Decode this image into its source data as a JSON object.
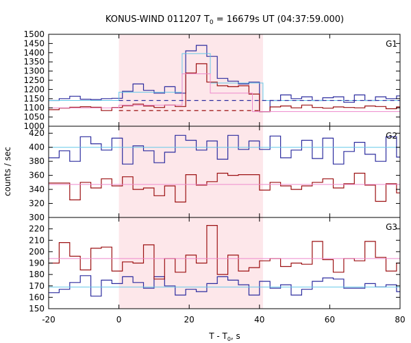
{
  "chart_data": {
    "type": "line",
    "title_main": "KONUS-WIND 011207 T",
    "title_sub": "0",
    "title_rest": " = 16679s UT (04:37:59.000)",
    "ylabel": "counts / sec",
    "xlabel_main": "T - T",
    "xlabel_sub": "0",
    "xlabel_rest": ", s",
    "xlim": [
      -20,
      80
    ],
    "x_ticks": [
      "-20",
      "0",
      "20",
      "40",
      "60",
      "80"
    ],
    "shaded_interval": [
      0,
      41
    ],
    "colors": {
      "blue": "#2b2b9e",
      "red": "#9b0f10",
      "cyan": "#64c8e8",
      "pink": "#ee88cc",
      "shade": "#fde7ea"
    },
    "panels": [
      {
        "name": "G1",
        "ylim": [
          1000,
          1500
        ],
        "y_ticks": [
          1000,
          1050,
          1100,
          1150,
          1200,
          1250,
          1300,
          1350,
          1400,
          1450,
          1500
        ],
        "series": [
          {
            "color": "blue",
            "x": [
              -20,
              -17,
              -14,
              -11,
              -8,
              -5,
              -2,
              1,
              4,
              7,
              10,
              13,
              16,
              19,
              22,
              25,
              28,
              31,
              34,
              37,
              40,
              43,
              46,
              49,
              52,
              55,
              58,
              61,
              64,
              67,
              70,
              73,
              76,
              79,
              80
            ],
            "y": [
              1140,
              1150,
              1163,
              1147,
              1145,
              1150,
              1152,
              1190,
              1230,
              1195,
              1180,
              1215,
              1180,
              1410,
              1440,
              1380,
              1260,
              1245,
              1230,
              1240,
              1080,
              1140,
              1170,
              1150,
              1160,
              1140,
              1155,
              1160,
              1130,
              1170,
              1140,
              1160,
              1150,
              1165,
              1165
            ]
          },
          {
            "color": "red",
            "x": [
              -20,
              -17,
              -14,
              -11,
              -8,
              -5,
              -2,
              1,
              4,
              7,
              10,
              13,
              16,
              19,
              22,
              25,
              28,
              31,
              34,
              37,
              40,
              43,
              46,
              49,
              52,
              55,
              58,
              61,
              64,
              67,
              70,
              73,
              76,
              79,
              80
            ],
            "y": [
              1090,
              1098,
              1103,
              1106,
              1103,
              1085,
              1102,
              1112,
              1120,
              1110,
              1102,
              1115,
              1107,
              1290,
              1340,
              1240,
              1220,
              1215,
              1220,
              1175,
              1080,
              1105,
              1110,
              1100,
              1115,
              1102,
              1098,
              1105,
              1102,
              1100,
              1110,
              1107,
              1095,
              1105,
              1105
            ]
          },
          {
            "color": "cyan",
            "x": [
              -20,
              0,
              18,
              26,
              41,
              80
            ],
            "y": [
              1140,
              1185,
              1395,
              1235,
              1140,
              1140
            ]
          },
          {
            "color": "pink",
            "x": [
              -20,
              0,
              18,
              26,
              38,
              80
            ],
            "y": [
              1100,
              1115,
              1285,
              1180,
              1080,
              1080
            ]
          }
        ],
        "bg_lines": [
          {
            "color": "blue",
            "y": 1140,
            "from": 0,
            "to": 80,
            "style": "dashed"
          },
          {
            "color": "red",
            "y": 1085,
            "from": 0,
            "to": 40,
            "style": "dashed"
          }
        ]
      },
      {
        "name": "G2",
        "ylim": [
          300,
          430
        ],
        "y_ticks": [
          300,
          320,
          340,
          360,
          380,
          400,
          420
        ],
        "series": [
          {
            "color": "blue",
            "x": [
              -20,
              -17,
              -14,
              -11,
              -8,
              -5,
              -2,
              1,
              4,
              7,
              10,
              13,
              16,
              19,
              22,
              25,
              28,
              31,
              34,
              37,
              40,
              43,
              46,
              49,
              52,
              55,
              58,
              61,
              64,
              67,
              70,
              73,
              76,
              79,
              80
            ],
            "y": [
              385,
              395,
              380,
              415,
              405,
              396,
              413,
              376,
              402,
              395,
              378,
              393,
              417,
              410,
              396,
              409,
              383,
              417,
              397,
              409,
              397,
              416,
              385,
              396,
              410,
              384,
              413,
              376,
              394,
              407,
              390,
              380,
              415,
              386,
              386
            ]
          },
          {
            "color": "red",
            "x": [
              -20,
              -17,
              -14,
              -11,
              -8,
              -5,
              -2,
              1,
              4,
              7,
              10,
              13,
              16,
              19,
              22,
              25,
              28,
              31,
              34,
              37,
              40,
              43,
              46,
              49,
              52,
              55,
              58,
              61,
              64,
              67,
              70,
              73,
              76,
              79,
              80
            ],
            "y": [
              349,
              349,
              325,
              350,
              342,
              355,
              345,
              358,
              340,
              342,
              331,
              345,
              322,
              361,
              346,
              351,
              363,
              360,
              361,
              361,
              339,
              350,
              345,
              340,
              345,
              350,
              355,
              342,
              348,
              363,
              346,
              323,
              348,
              335,
              335
            ]
          },
          {
            "color": "cyan",
            "x": [
              -20,
              80
            ],
            "y": [
              400,
              400
            ]
          },
          {
            "color": "pink",
            "x": [
              -20,
              80
            ],
            "y": [
              347,
              347
            ]
          }
        ],
        "bg_lines": []
      },
      {
        "name": "G3",
        "ylim": [
          150,
          230
        ],
        "y_ticks": [
          150,
          160,
          170,
          180,
          190,
          200,
          210,
          220
        ],
        "series": [
          {
            "color": "blue",
            "x": [
              -20,
              -17,
              -14,
              -11,
              -8,
              -5,
              -2,
              1,
              4,
              7,
              10,
              13,
              16,
              19,
              22,
              25,
              28,
              31,
              34,
              37,
              40,
              43,
              46,
              49,
              52,
              55,
              58,
              61,
              64,
              67,
              70,
              73,
              76,
              79,
              80
            ],
            "y": [
              164,
              167,
              173,
              179,
              161,
              175,
              172,
              178,
              173,
              168,
              178,
              170,
              162,
              167,
              165,
              172,
              178,
              175,
              171,
              162,
              174,
              168,
              171,
              162,
              167,
              174,
              177,
              176,
              168,
              168,
              172,
              169,
              171,
              165,
              165
            ]
          },
          {
            "color": "red",
            "x": [
              -20,
              -17,
              -14,
              -11,
              -8,
              -5,
              -2,
              1,
              4,
              7,
              10,
              13,
              16,
              19,
              22,
              25,
              28,
              31,
              34,
              37,
              40,
              43,
              46,
              49,
              52,
              55,
              58,
              61,
              64,
              67,
              70,
              73,
              76,
              79,
              80
            ],
            "y": [
              190,
              208,
              196,
              184,
              203,
              204,
              183,
              191,
              190,
              206,
              176,
              194,
              182,
              197,
              190,
              223,
              180,
              197,
              183,
              186,
              192,
              194,
              187,
              190,
              189,
              209,
              193,
              182,
              194,
              192,
              209,
              195,
              183,
              190,
              190
            ]
          },
          {
            "color": "cyan",
            "x": [
              -20,
              80
            ],
            "y": [
              169,
              169
            ]
          },
          {
            "color": "pink",
            "x": [
              -20,
              80
            ],
            "y": [
              194,
              194
            ]
          }
        ],
        "bg_lines": []
      }
    ]
  }
}
